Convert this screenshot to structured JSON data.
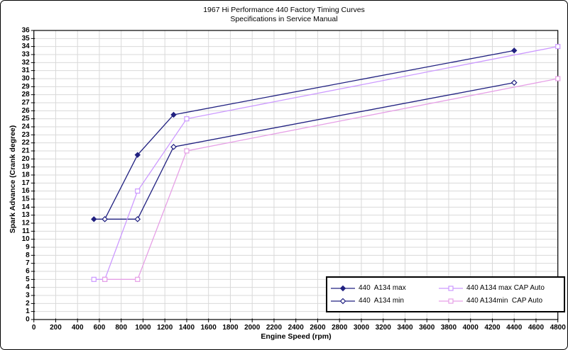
{
  "chart_data": {
    "type": "line",
    "title": "1967 Hi Performance 440 Factory Timing Curves",
    "subtitle": "Specifications in Service Manual",
    "xlabel": "Engine Speed (rpm)",
    "ylabel": "Spark Advance (Crank degree)",
    "xlim": [
      0,
      4800
    ],
    "ylim": [
      0,
      36
    ],
    "xticks": [
      0,
      200,
      400,
      600,
      800,
      1000,
      1200,
      1400,
      1600,
      1800,
      2000,
      2200,
      2400,
      2600,
      2800,
      3000,
      3200,
      3400,
      3600,
      3800,
      4000,
      4200,
      4400,
      4600,
      4800
    ],
    "yticks": [
      0,
      1,
      2,
      3,
      4,
      5,
      6,
      7,
      8,
      9,
      10,
      11,
      12,
      13,
      14,
      15,
      16,
      17,
      18,
      19,
      20,
      21,
      22,
      23,
      24,
      25,
      26,
      27,
      28,
      29,
      30,
      31,
      32,
      33,
      34,
      35,
      36
    ],
    "grid": true,
    "grid_color": "#d9d9d9",
    "axis_color": "#000000",
    "plot_bg": "#ffffff",
    "legend": {
      "position": "bottom-right-overlay",
      "border_color": "#000000",
      "entries_order": [
        0,
        2,
        1,
        3
      ]
    },
    "series": [
      {
        "name": "440  A134 max",
        "color": "#202080",
        "marker": "diamond-filled",
        "points": [
          [
            550,
            12.5
          ],
          [
            650,
            12.5
          ],
          [
            950,
            20.5
          ],
          [
            1280,
            25.5
          ],
          [
            4400,
            33.5
          ]
        ]
      },
      {
        "name": "440  A134 min",
        "color": "#202080",
        "marker": "diamond-open",
        "points": [
          [
            650,
            12.5
          ],
          [
            950,
            12.5
          ],
          [
            1280,
            21.5
          ],
          [
            4400,
            29.5
          ]
        ]
      },
      {
        "name": "440 A134 max CAP Auto",
        "color": "#cc99ff",
        "marker": "square-open",
        "points": [
          [
            550,
            5
          ],
          [
            650,
            5
          ],
          [
            950,
            16
          ],
          [
            1400,
            25
          ],
          [
            4800,
            34
          ]
        ]
      },
      {
        "name": "440 A134min  CAP Auto",
        "color": "#e6a0e6",
        "marker": "square-open",
        "points": [
          [
            650,
            5
          ],
          [
            950,
            5
          ],
          [
            1400,
            21
          ],
          [
            4800,
            30
          ]
        ]
      }
    ]
  }
}
